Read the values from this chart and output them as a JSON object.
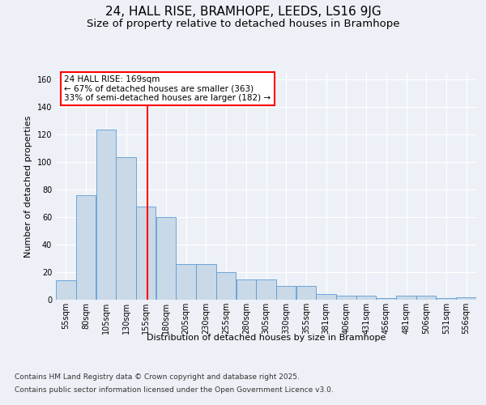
{
  "title_line1": "24, HALL RISE, BRAMHOPE, LEEDS, LS16 9JG",
  "title_line2": "Size of property relative to detached houses in Bramhope",
  "xlabel": "Distribution of detached houses by size in Bramhope",
  "ylabel": "Number of detached properties",
  "categories": [
    "55sqm",
    "80sqm",
    "105sqm",
    "130sqm",
    "155sqm",
    "180sqm",
    "205sqm",
    "230sqm",
    "255sqm",
    "280sqm",
    "305sqm",
    "330sqm",
    "355sqm",
    "381sqm",
    "406sqm",
    "431sqm",
    "456sqm",
    "481sqm",
    "506sqm",
    "531sqm",
    "556sqm"
  ],
  "values": [
    14,
    76,
    124,
    104,
    68,
    60,
    26,
    26,
    20,
    15,
    15,
    10,
    10,
    4,
    3,
    3,
    1,
    3,
    3,
    1,
    2
  ],
  "bar_color": "#c9d9e8",
  "bar_edge_color": "#5b9bd5",
  "vline_x": 169,
  "vline_color": "red",
  "annotation_text": "24 HALL RISE: 169sqm\n← 67% of detached houses are smaller (363)\n33% of semi-detached houses are larger (182) →",
  "annotation_box_color": "red",
  "ylim": [
    0,
    165
  ],
  "yticks": [
    0,
    20,
    40,
    60,
    80,
    100,
    120,
    140,
    160
  ],
  "bg_color": "#edf1f7",
  "plot_bg_color": "#edf1f7",
  "grid_color": "white",
  "footer_line1": "Contains HM Land Registry data © Crown copyright and database right 2025.",
  "footer_line2": "Contains public sector information licensed under the Open Government Licence v3.0.",
  "title_fontsize": 11,
  "subtitle_fontsize": 9.5,
  "axis_label_fontsize": 8,
  "tick_fontsize": 7,
  "annotation_fontsize": 7.5,
  "footer_fontsize": 6.5
}
